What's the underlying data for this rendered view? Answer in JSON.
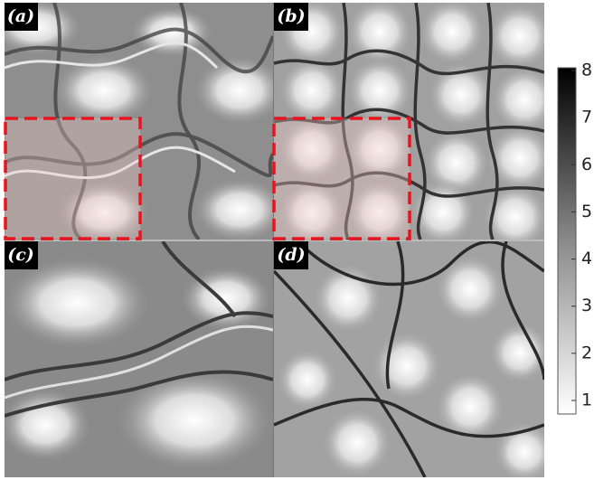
{
  "panels": [
    {
      "label": "(a)"
    },
    {
      "label": "(b)"
    },
    {
      "label": "(c)"
    },
    {
      "label": "(d)"
    }
  ],
  "colorbar": {
    "ticks": [
      "8",
      "7",
      "6",
      "5",
      "4",
      "3",
      "2",
      "1"
    ]
  }
}
